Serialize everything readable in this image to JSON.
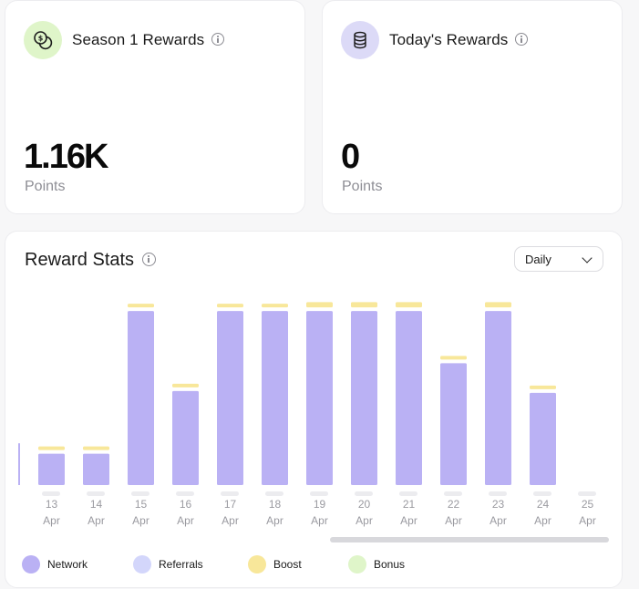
{
  "season_card": {
    "title": "Season 1 Rewards",
    "value": "1.16K",
    "unit": "Points",
    "icon": "coins-icon"
  },
  "today_card": {
    "title": "Today's Rewards",
    "value": "0",
    "unit": "Points",
    "icon": "database-icon"
  },
  "stats": {
    "title": "Reward Stats",
    "period_selected": "Daily"
  },
  "colors": {
    "network": "#bab1f4",
    "referrals": "#d3d6fb",
    "boost": "#f8e79a",
    "bonus": "#dff5c9",
    "placeholder": "#ececef"
  },
  "chart_data": {
    "type": "bar",
    "title": "Reward Stats",
    "xlabel": "",
    "ylabel": "",
    "grid": false,
    "categories": [
      "13 Apr",
      "14 Apr",
      "15 Apr",
      "16 Apr",
      "17 Apr",
      "18 Apr",
      "19 Apr",
      "20 Apr",
      "21 Apr",
      "22 Apr",
      "23 Apr",
      "24 Apr",
      "25 Apr"
    ],
    "tick_top": [
      "13",
      "14",
      "15",
      "16",
      "17",
      "18",
      "19",
      "20",
      "21",
      "22",
      "23",
      "24",
      "25"
    ],
    "tick_bottom": [
      "Apr",
      "Apr",
      "Apr",
      "Apr",
      "Apr",
      "Apr",
      "Apr",
      "Apr",
      "Apr",
      "Apr",
      "Apr",
      "Apr",
      "Apr"
    ],
    "ylim": [
      0,
      110
    ],
    "series": [
      {
        "name": "Network",
        "color": "#bab1f4",
        "values": [
          18,
          18,
          100,
          54,
          100,
          100,
          100,
          100,
          100,
          70,
          100,
          53,
          0
        ]
      },
      {
        "name": "Referrals",
        "color": "#d3d6fb",
        "values": [
          0,
          0,
          0,
          0,
          0,
          0,
          0,
          0,
          0,
          0,
          0,
          0,
          0
        ]
      },
      {
        "name": "Boost",
        "color": "#f8e79a",
        "values": [
          1,
          1,
          1,
          1,
          1,
          1,
          3,
          3,
          3,
          2,
          3,
          2,
          0
        ]
      },
      {
        "name": "Bonus",
        "color": "#dff5c9",
        "values": [
          0,
          0,
          0,
          0,
          0,
          0,
          0,
          0,
          0,
          0,
          0,
          0,
          0
        ]
      }
    ],
    "legend": [
      "Network",
      "Referrals",
      "Boost",
      "Bonus"
    ],
    "legend_position": "bottom-left"
  }
}
